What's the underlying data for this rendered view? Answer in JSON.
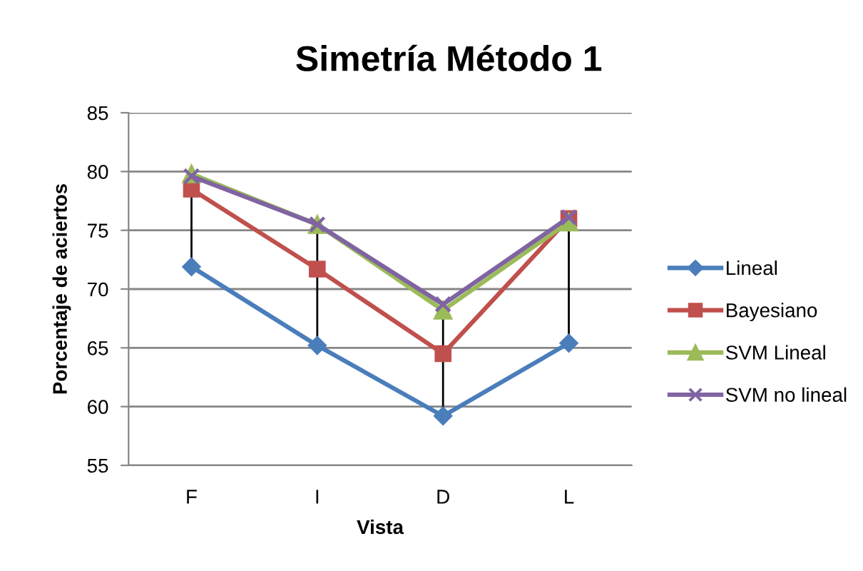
{
  "chart_data": {
    "type": "line",
    "title": "Simetría Método 1",
    "xlabel": "Vista",
    "ylabel": "Porcentaje de aciertos",
    "categories": [
      "F",
      "I",
      "D",
      "L"
    ],
    "series": [
      {
        "name": "Lineal",
        "color": "#4a7ebb",
        "marker": "diamond",
        "values": [
          71.9,
          65.2,
          59.2,
          65.4
        ],
        "errors": [
          [
            71.9,
            79.8
          ],
          [
            65.2,
            75.5
          ],
          [
            59.2,
            68.7
          ],
          [
            65.4,
            76.1
          ]
        ]
      },
      {
        "name": "Bayesiano",
        "color": "#c0504d",
        "marker": "square",
        "values": [
          78.5,
          71.7,
          64.5,
          76.0
        ]
      },
      {
        "name": "SVM Lineal",
        "color": "#9bbb59",
        "marker": "triangle",
        "values": [
          79.8,
          75.5,
          68.2,
          75.7
        ]
      },
      {
        "name": "SVM no lineal",
        "color": "#8064a2",
        "marker": "cross",
        "values": [
          79.6,
          75.5,
          68.7,
          76.1
        ]
      }
    ],
    "ylim": [
      55,
      85
    ],
    "yticks": [
      55,
      60,
      65,
      70,
      75,
      80,
      85
    ],
    "grid": "y",
    "legend": "right",
    "line_style": "solid"
  }
}
